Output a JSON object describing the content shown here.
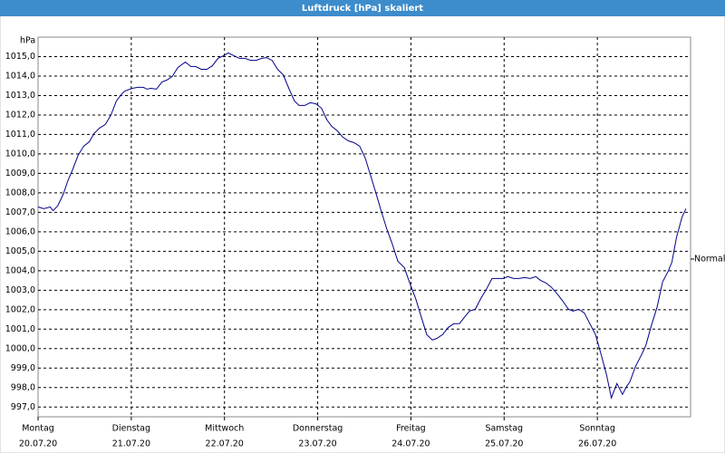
{
  "chart_data": {
    "type": "line",
    "title": "Luftdruck [hPa] skaliert",
    "y_unit": "hPa",
    "x": [
      0.0,
      0.06,
      0.13,
      0.16,
      0.21,
      0.27,
      0.32,
      0.37,
      0.43,
      0.49,
      0.55,
      0.6,
      0.66,
      0.72,
      0.78,
      0.84,
      0.9,
      0.93,
      1.01,
      1.07,
      1.13,
      1.17,
      1.21,
      1.27,
      1.33,
      1.38,
      1.44,
      1.5,
      1.58,
      1.64,
      1.69,
      1.75,
      1.81,
      1.87,
      1.93,
      1.99,
      2.04,
      2.1,
      2.16,
      2.22,
      2.28,
      2.34,
      2.4,
      2.45,
      2.51,
      2.57,
      2.63,
      2.69,
      2.75,
      2.8,
      2.86,
      2.92,
      2.98,
      3.04,
      3.1,
      3.15,
      3.21,
      3.27,
      3.33,
      3.39,
      3.45,
      3.51,
      3.56,
      3.62,
      3.68,
      3.74,
      3.8,
      3.86,
      3.93,
      3.99,
      4.05,
      4.11,
      4.17,
      4.23,
      4.28,
      4.34,
      4.4,
      4.46,
      4.52,
      4.58,
      4.63,
      4.69,
      4.75,
      4.81,
      4.87,
      4.93,
      4.99,
      5.04,
      5.1,
      5.16,
      5.22,
      5.28,
      5.34,
      5.39,
      5.45,
      5.51,
      5.57,
      5.63,
      5.69,
      5.74,
      5.8,
      5.86,
      5.92,
      5.98,
      6.04,
      6.1,
      6.15,
      6.21,
      6.27,
      6.31,
      6.35,
      6.41,
      6.47,
      6.52,
      6.58,
      6.64,
      6.7,
      6.76,
      6.8,
      6.85,
      6.91,
      6.95
    ],
    "values": [
      1007.28,
      1007.19,
      1007.28,
      1007.09,
      1007.33,
      1007.93,
      1008.63,
      1009.19,
      1009.93,
      1010.4,
      1010.63,
      1011.05,
      1011.33,
      1011.51,
      1011.98,
      1012.72,
      1013.09,
      1013.23,
      1013.37,
      1013.42,
      1013.42,
      1013.33,
      1013.37,
      1013.33,
      1013.7,
      1013.79,
      1013.98,
      1014.44,
      1014.72,
      1014.49,
      1014.49,
      1014.35,
      1014.35,
      1014.53,
      1014.91,
      1015.05,
      1015.19,
      1015.05,
      1014.91,
      1014.91,
      1014.81,
      1014.81,
      1014.91,
      1014.95,
      1014.81,
      1014.35,
      1014.07,
      1013.37,
      1012.72,
      1012.49,
      1012.49,
      1012.63,
      1012.58,
      1012.35,
      1011.74,
      1011.42,
      1011.19,
      1010.86,
      1010.67,
      1010.58,
      1010.4,
      1009.79,
      1009.0,
      1008.07,
      1007.09,
      1006.16,
      1005.37,
      1004.49,
      1004.16,
      1003.33,
      1002.58,
      1001.65,
      1000.72,
      1000.44,
      1000.53,
      1000.72,
      1001.09,
      1001.28,
      1001.28,
      1001.65,
      1001.93,
      1002.02,
      1002.58,
      1003.05,
      1003.6,
      1003.6,
      1003.6,
      1003.7,
      1003.6,
      1003.6,
      1003.65,
      1003.6,
      1003.7,
      1003.51,
      1003.37,
      1003.14,
      1002.81,
      1002.44,
      1002.02,
      1001.93,
      1002.02,
      1001.84,
      1001.28,
      1000.72,
      999.7,
      998.63,
      997.47,
      998.21,
      997.65,
      998.02,
      998.3,
      999.09,
      999.65,
      1000.16,
      1001.19,
      1002.12,
      1003.42,
      1003.98,
      1004.44,
      1005.74,
      1006.77,
      1007.19
    ],
    "color": "#00008b",
    "xlim": [
      0,
      7
    ],
    "xticks": [
      {
        "value": 0,
        "label": "Montag"
      },
      {
        "value": 1,
        "label": "Dienstag"
      },
      {
        "value": 2,
        "label": "Mittwoch"
      },
      {
        "value": 3,
        "label": "Donnerstag"
      },
      {
        "value": 4,
        "label": "Freitag"
      },
      {
        "value": 5,
        "label": "Samstag"
      },
      {
        "value": 6,
        "label": "Sonntag"
      }
    ],
    "xtick_dates": [
      "20.07.20",
      "21.07.20",
      "22.07.20",
      "23.07.20",
      "24.07.20",
      "25.07.20",
      "26.07.20"
    ],
    "ylim": [
      996.5,
      1016.0
    ],
    "yticks": [
      {
        "value": 997,
        "label": "997,0"
      },
      {
        "value": 998,
        "label": "998,0"
      },
      {
        "value": 999,
        "label": "999,0"
      },
      {
        "value": 1000,
        "label": "1000,0"
      },
      {
        "value": 1001,
        "label": "1001,0"
      },
      {
        "value": 1002,
        "label": "1002,0"
      },
      {
        "value": 1003,
        "label": "1003,0"
      },
      {
        "value": 1004,
        "label": "1004,0"
      },
      {
        "value": 1005,
        "label": "1005,0"
      },
      {
        "value": 1006,
        "label": "1006,0"
      },
      {
        "value": 1007,
        "label": "1007,0"
      },
      {
        "value": 1008,
        "label": "1008,0"
      },
      {
        "value": 1009,
        "label": "1009,0"
      },
      {
        "value": 1010,
        "label": "1010,0"
      },
      {
        "value": 1011,
        "label": "1011,0"
      },
      {
        "value": 1012,
        "label": "1012,0"
      },
      {
        "value": 1013,
        "label": "1013,0"
      },
      {
        "value": 1014,
        "label": "1014,0"
      },
      {
        "value": 1015,
        "label": "1015,0"
      }
    ],
    "normal": {
      "label": "Normal",
      "value": 1004.6
    },
    "grid": true
  }
}
